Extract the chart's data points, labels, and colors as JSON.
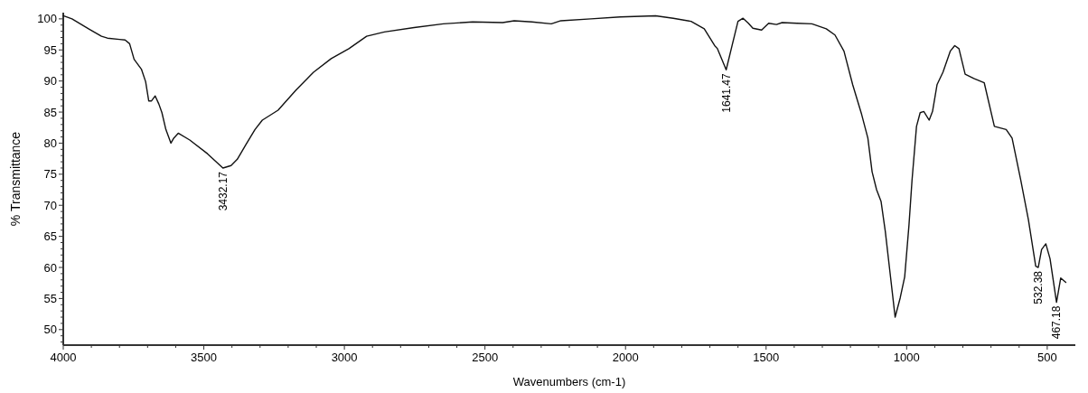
{
  "chart_data": {
    "type": "line",
    "xlabel": "Wavenumbers (cm-1)",
    "ylabel": "% Transmittance",
    "xlim": [
      4000,
      400
    ],
    "ylim": [
      47.5,
      101
    ],
    "xticks": [
      4000,
      {
        "value": 3900,
        "label": null
      },
      {
        "value": 3800,
        "label": null
      },
      {
        "value": 3700,
        "label": null
      },
      {
        "value": 3600,
        "label": null
      },
      3500,
      {
        "value": 3400,
        "label": null
      },
      {
        "value": 3300,
        "label": null
      },
      {
        "value": 3200,
        "label": null
      },
      {
        "value": 3100,
        "label": null
      },
      3000,
      {
        "value": 2900,
        "label": null
      },
      {
        "value": 2800,
        "label": null
      },
      {
        "value": 2700,
        "label": null
      },
      {
        "value": 2600,
        "label": null
      },
      2500,
      {
        "value": 2400,
        "label": null
      },
      {
        "value": 2300,
        "label": null
      },
      {
        "value": 2200,
        "label": null
      },
      {
        "value": 2100,
        "label": null
      },
      2000,
      {
        "value": 1900,
        "label": null
      },
      {
        "value": 1800,
        "label": null
      },
      {
        "value": 1700,
        "label": null
      },
      {
        "value": 1600,
        "label": null
      },
      1500,
      {
        "value": 1400,
        "label": null
      },
      {
        "value": 1300,
        "label": null
      },
      {
        "value": 1200,
        "label": null
      },
      {
        "value": 1100,
        "label": null
      },
      1000,
      {
        "value": 900,
        "label": null
      },
      {
        "value": 800,
        "label": null
      },
      {
        "value": 700,
        "label": null
      },
      {
        "value": 600,
        "label": null
      },
      500
    ],
    "yticks": [
      {
        "value": 48,
        "label": null
      },
      {
        "value": 49,
        "label": null
      },
      50,
      {
        "value": 51,
        "label": null
      },
      {
        "value": 52,
        "label": null
      },
      {
        "value": 53,
        "label": null
      },
      {
        "value": 54,
        "label": null
      },
      55,
      {
        "value": 56,
        "label": null
      },
      {
        "value": 57,
        "label": null
      },
      {
        "value": 58,
        "label": null
      },
      {
        "value": 59,
        "label": null
      },
      60,
      {
        "value": 61,
        "label": null
      },
      {
        "value": 62,
        "label": null
      },
      {
        "value": 63,
        "label": null
      },
      {
        "value": 64,
        "label": null
      },
      65,
      {
        "value": 66,
        "label": null
      },
      {
        "value": 67,
        "label": null
      },
      {
        "value": 68,
        "label": null
      },
      {
        "value": 69,
        "label": null
      },
      70,
      {
        "value": 71,
        "label": null
      },
      {
        "value": 72,
        "label": null
      },
      {
        "value": 73,
        "label": null
      },
      {
        "value": 74,
        "label": null
      },
      75,
      {
        "value": 76,
        "label": null
      },
      {
        "value": 77,
        "label": null
      },
      {
        "value": 78,
        "label": null
      },
      {
        "value": 79,
        "label": null
      },
      80,
      {
        "value": 81,
        "label": null
      },
      {
        "value": 82,
        "label": null
      },
      {
        "value": 83,
        "label": null
      },
      {
        "value": 84,
        "label": null
      },
      85,
      {
        "value": 86,
        "label": null
      },
      {
        "value": 87,
        "label": null
      },
      {
        "value": 88,
        "label": null
      },
      {
        "value": 89,
        "label": null
      },
      90,
      {
        "value": 91,
        "label": null
      },
      {
        "value": 92,
        "label": null
      },
      {
        "value": 93,
        "label": null
      },
      {
        "value": 94,
        "label": null
      },
      95,
      {
        "value": 96,
        "label": null
      },
      {
        "value": 97,
        "label": null
      },
      {
        "value": 98,
        "label": null
      },
      {
        "value": 99,
        "label": null
      },
      100
    ],
    "grid": false,
    "marker": "none",
    "line_style": "solid",
    "series": [
      {
        "color": "#111111",
        "x": [
          4000,
          3969,
          3906,
          3864,
          3843,
          3800,
          3780,
          3764,
          3748,
          3722,
          3707,
          3696,
          3686,
          3673,
          3660,
          3649,
          3635,
          3617,
          3607,
          3591,
          3550,
          3487,
          3432,
          3403,
          3381,
          3350,
          3318,
          3292,
          3236,
          3173,
          3110,
          3047,
          2984,
          2921,
          2858,
          2752,
          2648,
          2544,
          2437,
          2396,
          2333,
          2264,
          2230,
          2123,
          2019,
          1893,
          1830,
          1767,
          1720,
          1683,
          1673,
          1642,
          1621,
          1600,
          1582,
          1563,
          1547,
          1516,
          1491,
          1463,
          1443,
          1390,
          1337,
          1286,
          1255,
          1223,
          1192,
          1160,
          1138,
          1123,
          1107,
          1091,
          1076,
          1060,
          1041,
          1023,
          1007,
          992,
          981,
          965,
          952,
          939,
          920,
          908,
          892,
          871,
          845,
          829,
          814,
          792,
          761,
          724,
          688,
          646,
          625,
          594,
          567,
          541,
          532,
          520,
          505,
          490,
          467,
          452,
          434
        ],
        "values": [
          100.5,
          100,
          98.3,
          97.2,
          96.9,
          96.7,
          96.6,
          96,
          93.5,
          91.9,
          89.9,
          86.8,
          86.8,
          87.6,
          86.3,
          84.9,
          82.2,
          80,
          80.8,
          81.6,
          80.5,
          78.3,
          76,
          76.4,
          77.4,
          79.8,
          82.2,
          83.7,
          85.3,
          88.5,
          91.4,
          93.6,
          95.2,
          97.2,
          97.9,
          98.6,
          99.2,
          99.5,
          99.4,
          99.7,
          99.5,
          99.2,
          99.7,
          100,
          100.3,
          100.5,
          100.1,
          99.6,
          98.4,
          95.7,
          95.2,
          91.8,
          95.7,
          99.6,
          100.1,
          99.3,
          98.5,
          98.2,
          99.3,
          99.1,
          99.4,
          99.3,
          99.2,
          98.4,
          97.4,
          94.8,
          89.4,
          84.6,
          80.8,
          75.4,
          72.5,
          70.6,
          65.8,
          59.5,
          52,
          55.1,
          58.5,
          66.7,
          74,
          82.7,
          84.9,
          85.1,
          83.7,
          85.1,
          89.4,
          91.4,
          94.8,
          95.7,
          95.2,
          91.1,
          90.4,
          89.7,
          82.7,
          82.2,
          80.8,
          74,
          67.7,
          60.2,
          60,
          62.9,
          63.8,
          61.4,
          54.4,
          58.3,
          57.6
        ]
      }
    ],
    "annotations": [
      {
        "text": "3432.17",
        "x": 3432,
        "y": 76
      },
      {
        "text": "1641.47",
        "x": 1642,
        "y": 91.8
      },
      {
        "text": "532.38",
        "x": 532,
        "y": 60
      },
      {
        "text": "467.18",
        "x": 467,
        "y": 54.4
      }
    ]
  }
}
